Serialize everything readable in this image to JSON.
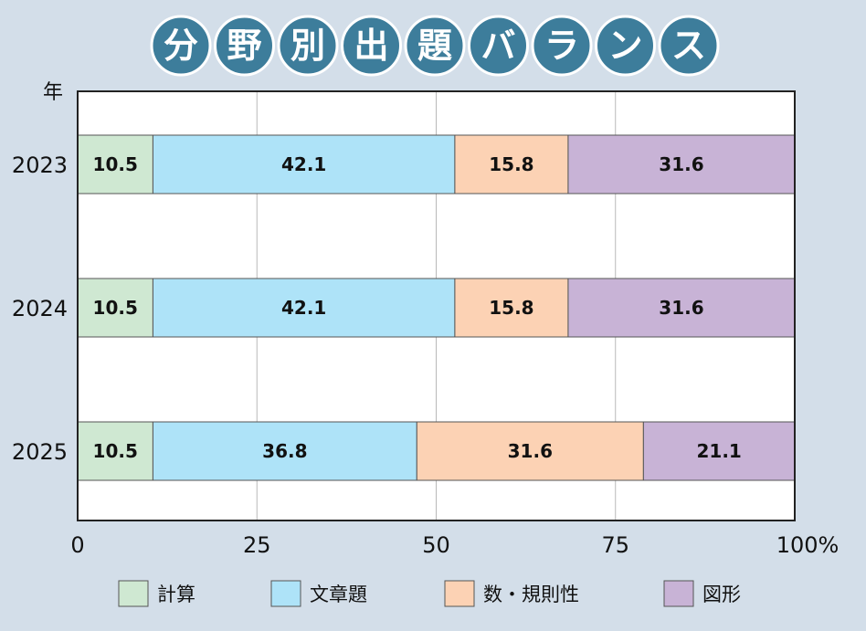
{
  "title": "分野別出題バランス",
  "chart_data": {
    "type": "bar",
    "orientation": "horizontal",
    "stacked": true,
    "y_unit_label": "年",
    "categories": [
      "2023",
      "2024",
      "2025"
    ],
    "series": [
      {
        "name": "計算",
        "color": "#cfe8d2",
        "values": [
          10.5,
          10.5,
          10.5
        ]
      },
      {
        "name": "文章題",
        "color": "#aee3f8",
        "values": [
          42.1,
          42.1,
          36.8
        ]
      },
      {
        "name": "数・規則性",
        "color": "#fcd2b4",
        "values": [
          15.8,
          15.8,
          31.6
        ]
      },
      {
        "name": "図形",
        "color": "#c8b3d6",
        "values": [
          31.6,
          31.6,
          21.1
        ]
      }
    ],
    "xlim": [
      0,
      100
    ],
    "x_ticks": [
      "0",
      "25",
      "50",
      "75",
      "100%"
    ],
    "grid": true,
    "legend_position": "bottom"
  }
}
